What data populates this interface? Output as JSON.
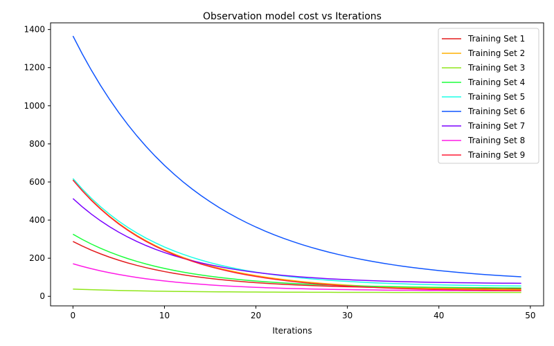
{
  "chart_data": {
    "type": "line",
    "title": "Observation model cost vs Iterations",
    "xlabel": "Iterations",
    "ylabel": "",
    "xlim": [
      -2.45,
      51.45
    ],
    "ylim": [
      -50,
      1435
    ],
    "xticks": [
      0,
      10,
      20,
      30,
      40,
      50
    ],
    "yticks": [
      0,
      200,
      400,
      600,
      800,
      1000,
      1200,
      1400
    ],
    "grid": false,
    "legend_position": "top-right",
    "x_start": 0,
    "x_end": 49,
    "series": [
      {
        "name": "Training Set 1",
        "color": "#e31a1c",
        "start": 288,
        "end": 38,
        "decay": 0.1
      },
      {
        "name": "Training Set 2",
        "color": "#ffb000",
        "start": 612,
        "end": 30,
        "decay": 0.1
      },
      {
        "name": "Training Set 3",
        "color": "#8fe61a",
        "start": 38,
        "end": 20,
        "decay": 0.1
      },
      {
        "name": "Training Set 4",
        "color": "#1aff3a",
        "start": 326,
        "end": 42,
        "decay": 0.1
      },
      {
        "name": "Training Set 5",
        "color": "#1affe6",
        "start": 618,
        "end": 50,
        "decay": 0.1
      },
      {
        "name": "Training Set 6",
        "color": "#0f55ff",
        "start": 1366,
        "end": 68,
        "decay": 0.074
      },
      {
        "name": "Training Set 7",
        "color": "#7a00ff",
        "start": 513,
        "end": 65,
        "decay": 0.1
      },
      {
        "name": "Training Set 8",
        "color": "#ff1ae6",
        "start": 171,
        "end": 28,
        "decay": 0.1
      },
      {
        "name": "Training Set 9",
        "color": "#ff1a35",
        "start": 610,
        "end": 25,
        "decay": 0.1
      }
    ]
  }
}
